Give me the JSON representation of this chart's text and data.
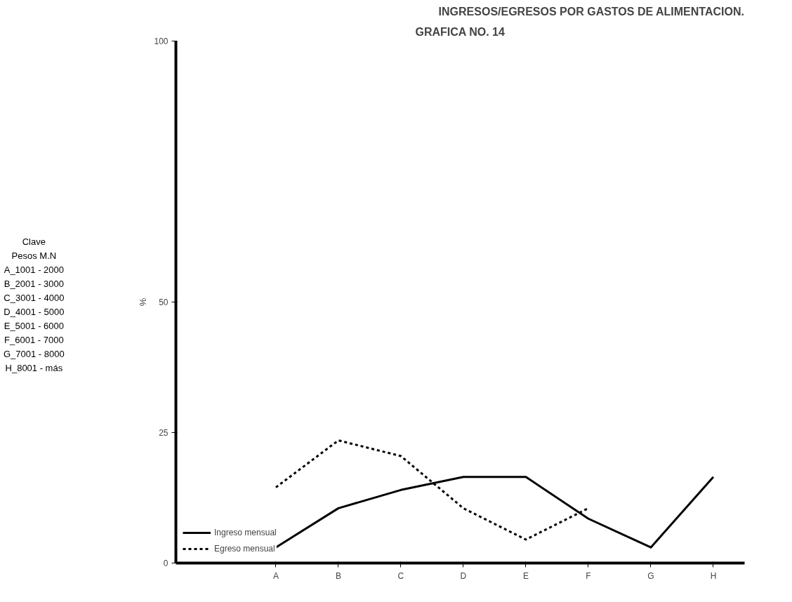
{
  "chart_data": {
    "type": "line",
    "title": "GRAFICA NO. 14",
    "subtitle": "INGRESOS/EGRESOS POR GASTOS DE ALIMENTACION.",
    "ylabel": "%",
    "categories": [
      "A",
      "B",
      "C",
      "D",
      "E",
      "F",
      "G",
      "H"
    ],
    "series": [
      {
        "name": "Ingreso mensual",
        "color": "#000000",
        "line_style": "solid",
        "values": [
          3,
          10.5,
          14,
          16.5,
          16.5,
          8.5,
          3,
          16.5
        ]
      },
      {
        "name": "Egreso mensual",
        "color": "#000000",
        "line_style": "dotted",
        "values": [
          14.5,
          23.5,
          20.5,
          10.5,
          4.5,
          10.5,
          null,
          null
        ]
      }
    ],
    "ylim": [
      0,
      100
    ],
    "yticks": [
      0,
      25,
      50,
      100
    ],
    "grid": false,
    "legend": "bottom left",
    "marker": "none",
    "annotations": [
      "Clave",
      "Pesos M.N",
      "A_1001 - 2000",
      "B_2001 - 3000",
      "C_3001 - 4000",
      "D_4001 - 5000",
      "E_5001 - 6000",
      "F_6001 - 7000",
      "G_7001 - 8000",
      "H_8001 - más"
    ]
  }
}
